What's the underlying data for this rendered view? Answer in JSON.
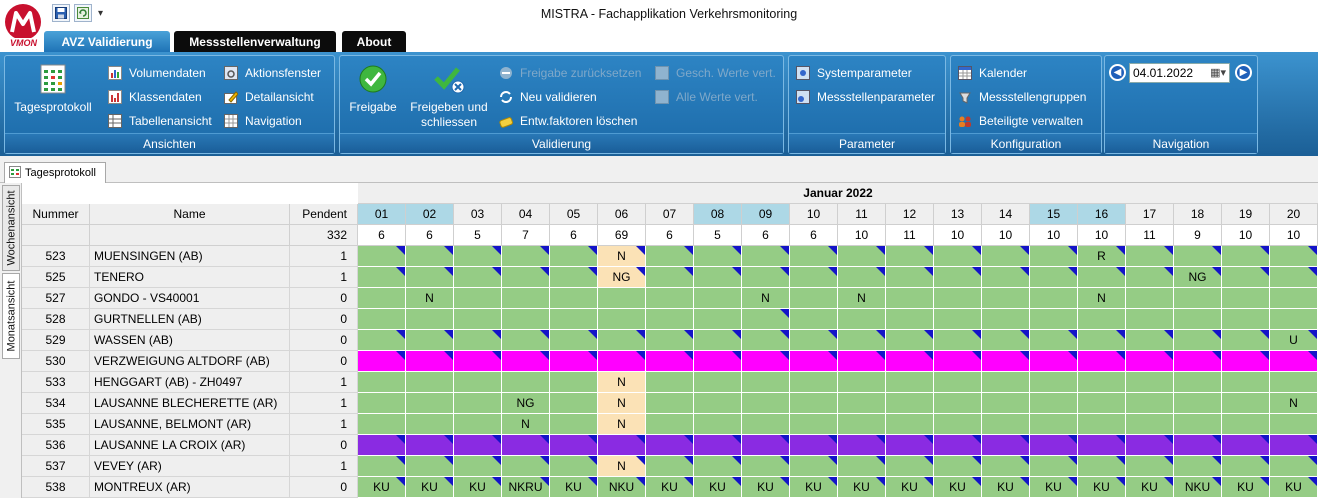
{
  "app": {
    "title": "MISTRA - Fachapplikation Verkehrsmonitoring",
    "logo_text": "VMON"
  },
  "tabs": [
    {
      "label": "AVZ Validierung",
      "active": true
    },
    {
      "label": "Messstellenverwaltung",
      "active": false
    },
    {
      "label": "About",
      "active": false
    }
  ],
  "ribbon": {
    "ansichten": {
      "label": "Ansichten",
      "big": "Tagesprotokoll",
      "items": [
        "Volumendaten",
        "Klassendaten",
        "Tabellenansicht",
        "Aktionsfenster",
        "Detailansicht",
        "Navigation"
      ]
    },
    "validierung": {
      "label": "Validierung",
      "freigabe": "Freigabe",
      "freigeben_line1": "Freigeben und",
      "freigeben_line2": "schliessen",
      "freigabe_reset": "Freigabe zurücksetzen",
      "neu_validieren": "Neu validieren",
      "entw_loeschen": "Entw.faktoren löschen",
      "gesch_werte": "Gesch. Werte vert.",
      "alle_werte": "Alle Werte vert."
    },
    "parameter": {
      "label": "Parameter",
      "items": [
        "Systemparameter",
        "Messstellenparameter"
      ]
    },
    "konfiguration": {
      "label": "Konfiguration",
      "items": [
        "Kalender",
        "Messstellengruppen",
        "Beteiligte verwalten"
      ]
    },
    "navigation": {
      "label": "Navigation",
      "date": "04.01.2022"
    }
  },
  "doc_tab": "Tagesprotokoll",
  "side_tabs": [
    "Wochenansicht",
    "Monatsansicht"
  ],
  "grid": {
    "month": "Januar 2022",
    "headers": {
      "nummer": "Nummer",
      "name": "Name",
      "pendent": "Pendent"
    },
    "pendent_total": "332",
    "days": [
      "01",
      "02",
      "03",
      "04",
      "05",
      "06",
      "07",
      "08",
      "09",
      "10",
      "11",
      "12",
      "13",
      "14",
      "15",
      "16",
      "17",
      "18",
      "19",
      "20"
    ],
    "weekend_days": [
      "01",
      "02",
      "08",
      "09",
      "15",
      "16"
    ],
    "day_totals": [
      "6",
      "6",
      "5",
      "7",
      "6",
      "69",
      "6",
      "5",
      "6",
      "6",
      "10",
      "11",
      "10",
      "10",
      "10",
      "10",
      "11",
      "9",
      "10",
      "10"
    ],
    "rows": [
      {
        "nr": "523",
        "name": "MUENSINGEN (AB)",
        "pendent": "1",
        "color": "green",
        "cells": {
          "06": "N",
          "16": "R"
        },
        "pending": [
          "06"
        ],
        "tri": [
          1,
          2,
          3,
          4,
          5,
          6,
          7,
          8,
          9,
          10,
          11,
          12,
          13,
          14,
          15,
          16,
          17,
          18,
          19,
          20
        ]
      },
      {
        "nr": "525",
        "name": "TENERO",
        "pendent": "1",
        "color": "green",
        "cells": {
          "06": "NG",
          "18": "NG"
        },
        "pending": [
          "06"
        ],
        "tri": [
          1,
          2,
          3,
          4,
          5,
          6,
          7,
          8,
          9,
          10,
          11,
          12,
          13,
          14,
          15,
          16,
          17,
          18,
          19,
          20
        ]
      },
      {
        "nr": "527",
        "name": "GONDO - VS40001",
        "pendent": "0",
        "color": "green",
        "cells": {
          "02": "N",
          "09": "N",
          "11": "N",
          "16": "N"
        },
        "pending": [],
        "tri": []
      },
      {
        "nr": "528",
        "name": "GURTNELLEN (AB)",
        "pendent": "0",
        "color": "green",
        "cells": {},
        "pending": [],
        "tri": [
          9
        ]
      },
      {
        "nr": "529",
        "name": "WASSEN (AB)",
        "pendent": "0",
        "color": "green",
        "cells": {
          "20": "U"
        },
        "pending": [],
        "tri": [
          1,
          2,
          3,
          4,
          5,
          6,
          7,
          8,
          9,
          10,
          11,
          12,
          13,
          14,
          15,
          16,
          17,
          18,
          19,
          20
        ]
      },
      {
        "nr": "530",
        "name": "VERZWEIGUNG ALTDORF (AB)",
        "pendent": "0",
        "color": "magenta",
        "cells": {},
        "pending": [],
        "tri": [
          1,
          2,
          3,
          4,
          5,
          6,
          7,
          8,
          9,
          10,
          11,
          12,
          13,
          14,
          15,
          16,
          17,
          18,
          19,
          20
        ]
      },
      {
        "nr": "533",
        "name": "HENGGART (AB) - ZH0497",
        "pendent": "1",
        "color": "green",
        "cells": {
          "06": "N"
        },
        "pending": [
          "06"
        ],
        "tri": []
      },
      {
        "nr": "534",
        "name": "LAUSANNE BLECHERETTE (AR)",
        "pendent": "1",
        "color": "green",
        "cells": {
          "04": "NG",
          "06": "N",
          "20": "N"
        },
        "pending": [
          "06"
        ],
        "tri": []
      },
      {
        "nr": "535",
        "name": "LAUSANNE, BELMONT (AR)",
        "pendent": "1",
        "color": "green",
        "cells": {
          "04": "N",
          "06": "N"
        },
        "pending": [
          "06"
        ],
        "tri": []
      },
      {
        "nr": "536",
        "name": "LAUSANNE LA CROIX (AR)",
        "pendent": "0",
        "color": "purple",
        "cells": {},
        "pending": [],
        "tri": [
          1,
          2,
          3,
          4,
          5,
          6,
          7,
          8,
          9,
          10,
          11,
          12,
          13,
          14,
          15,
          16,
          17,
          18,
          19,
          20
        ]
      },
      {
        "nr": "537",
        "name": "VEVEY (AR)",
        "pendent": "1",
        "color": "green",
        "cells": {
          "06": "N"
        },
        "pending": [
          "06"
        ],
        "tri": [
          1,
          2,
          3,
          4,
          5,
          6,
          7,
          8,
          9,
          10,
          11,
          12,
          13,
          14,
          15,
          16,
          17,
          18,
          19,
          20
        ]
      },
      {
        "nr": "538",
        "name": "MONTREUX (AR)",
        "pendent": "0",
        "color": "green",
        "cells": {
          "01": "KU",
          "02": "KU",
          "03": "KU",
          "04": "NKRU",
          "05": "KU",
          "06": "NKU",
          "07": "KU",
          "08": "KU",
          "09": "KU",
          "10": "KU",
          "11": "KU",
          "12": "KU",
          "13": "KU",
          "14": "KU",
          "15": "KU",
          "16": "KU",
          "17": "KU",
          "18": "NKU",
          "19": "KU",
          "20": "KU"
        },
        "pending": [],
        "tri": [
          1,
          2,
          3,
          4,
          5,
          6,
          7,
          8,
          9,
          10,
          11,
          12,
          13,
          14,
          15,
          16,
          17,
          18,
          19,
          20
        ]
      }
    ]
  },
  "colors": {
    "green": "#95cc85",
    "magenta": "#ff00ff",
    "purple": "#8a2be2",
    "pending": "#fbe2b6",
    "weekend": "#add8e6",
    "triangle": "#1414c8"
  }
}
